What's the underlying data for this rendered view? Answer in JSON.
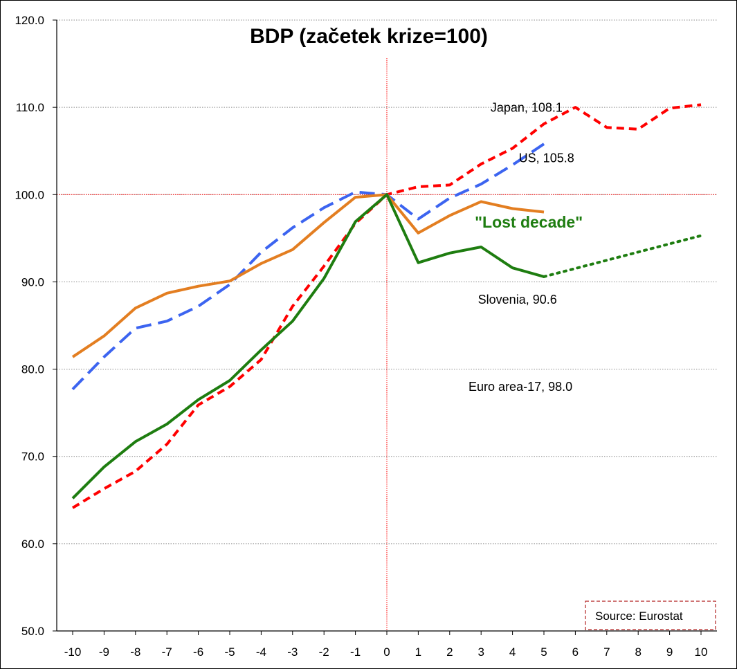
{
  "chart_data": {
    "type": "line",
    "title": "BDP (začetek krize=100)",
    "x": [
      -10,
      -9,
      -8,
      -7,
      -6,
      -5,
      -4,
      -3,
      -2,
      -1,
      0,
      1,
      2,
      3,
      4,
      5,
      6,
      7,
      8,
      9,
      10
    ],
    "ylim": [
      50,
      120
    ],
    "yticks": [
      "50.0",
      "60.0",
      "70.0",
      "80.0",
      "90.0",
      "100.0",
      "110.0",
      "120.0"
    ],
    "xticks": [
      "-10",
      "-9",
      "-8",
      "-7",
      "-6",
      "-5",
      "-4",
      "-3",
      "-2",
      "-1",
      "0",
      "1",
      "2",
      "3",
      "4",
      "5",
      "6",
      "7",
      "8",
      "9",
      "10"
    ],
    "grid": true,
    "reference_lines": {
      "x": 0,
      "y": 100
    },
    "series": [
      {
        "name": "Japan",
        "color": "#ff0000",
        "style": "dashed",
        "x": [
          -10,
          -9,
          -8,
          -7,
          -6,
          -5,
          -4,
          -3,
          -2,
          -1,
          0,
          1,
          2,
          3,
          4,
          5,
          6,
          7,
          8,
          9,
          10
        ],
        "values": [
          64.1,
          66.3,
          68.3,
          71.4,
          75.9,
          78.0,
          81.1,
          87.2,
          91.8,
          96.7,
          100.0,
          100.9,
          101.1,
          103.5,
          105.3,
          108.1,
          110.0,
          107.7,
          107.5,
          109.9,
          110.3
        ]
      },
      {
        "name": "US",
        "color": "#3c64f0",
        "style": "dashed-long",
        "x": [
          -10,
          -9,
          -8,
          -7,
          -6,
          -5,
          -4,
          -3,
          -2,
          -1,
          0,
          1,
          2,
          3,
          4,
          5
        ],
        "values": [
          77.7,
          81.4,
          84.7,
          85.5,
          87.2,
          89.7,
          93.4,
          96.2,
          98.5,
          100.3,
          100.0,
          97.2,
          99.6,
          101.2,
          103.4,
          105.8
        ]
      },
      {
        "name": "Euro area-17",
        "color": "#e37e21",
        "style": "solid",
        "x": [
          -10,
          -9,
          -8,
          -7,
          -6,
          -5,
          -4,
          -3,
          -2,
          -1,
          0,
          1,
          2,
          3,
          4,
          5
        ],
        "values": [
          81.4,
          83.8,
          87.0,
          88.7,
          89.5,
          90.1,
          92.1,
          93.7,
          96.8,
          99.7,
          100.0,
          95.6,
          97.6,
          99.2,
          98.4,
          98.0
        ]
      },
      {
        "name": "Slovenia",
        "color": "#1e7d10",
        "style": "solid",
        "x": [
          -10,
          -9,
          -8,
          -7,
          -6,
          -5,
          -4,
          -3,
          -2,
          -1,
          0,
          1,
          2,
          3,
          4,
          5
        ],
        "values": [
          65.2,
          68.8,
          71.7,
          73.7,
          76.5,
          78.7,
          82.2,
          85.5,
          90.4,
          96.9,
          100.0,
          92.2,
          93.3,
          94.0,
          91.6,
          90.6
        ]
      },
      {
        "name": "Slovenia projection",
        "color": "#1e7d10",
        "style": "dotted",
        "x": [
          5,
          10
        ],
        "values": [
          90.6,
          95.3
        ]
      }
    ],
    "annotations": [
      {
        "text": "Japan, 108.1",
        "x": 3.3,
        "y": 109.5
      },
      {
        "text": "US, 105.8",
        "x": 4.2,
        "y": 103.7
      },
      {
        "text": "\"Lost decade\"",
        "x": 2.8,
        "y": 96.2,
        "style": "bold-green"
      },
      {
        "text": "Slovenia, 90.6",
        "x": 2.9,
        "y": 87.5
      },
      {
        "text": "Euro area-17, 98.0",
        "x": 2.6,
        "y": 77.5
      }
    ],
    "source": "Source: Eurostat"
  }
}
